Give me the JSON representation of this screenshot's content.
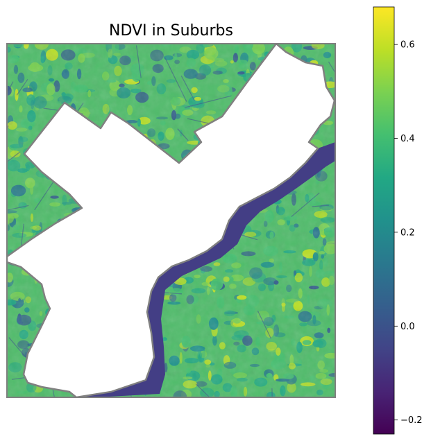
{
  "chart_data": {
    "type": "heatmap",
    "title": "NDVI in Suburbs",
    "xlabel": "",
    "ylabel": "",
    "colormap": "viridis",
    "colorbar": {
      "range": [
        -0.23,
        0.68
      ],
      "ticks": [
        -0.2,
        0.0,
        0.2,
        0.4,
        0.6
      ],
      "tick_labels": [
        "−0.2",
        "0.0",
        "0.2",
        "0.4",
        "0.6"
      ]
    },
    "masked_region_color": "#ffffff",
    "boundary_color": "#808080",
    "grid": false,
    "legend": "colorbar-right"
  }
}
